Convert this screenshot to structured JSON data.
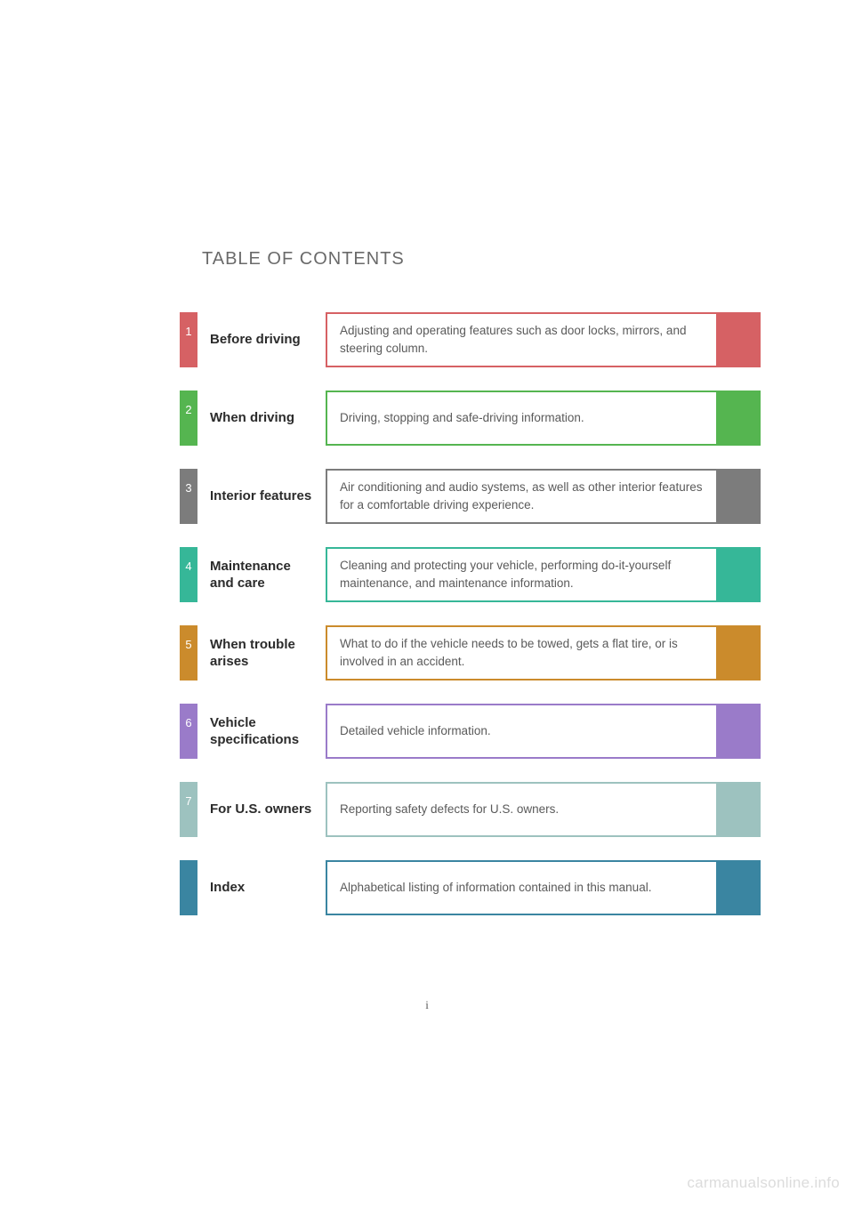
{
  "heading": "TABLE OF CONTENTS",
  "page_number": "i",
  "watermark": "carmanualsonline.info",
  "text_color": "#5a5a5a",
  "title_color": "#2b2b2b",
  "background": "#ffffff",
  "sections": [
    {
      "num": "1",
      "title": "Before driving",
      "desc": "Adjusting and operating features such as door locks, mirrors, and steering column.",
      "tab_color": "#d66164",
      "border_color": "#d66164",
      "end_color": "#d66164"
    },
    {
      "num": "2",
      "title": "When driving",
      "desc": "Driving, stopping and safe-driving information.",
      "tab_color": "#55b550",
      "border_color": "#55b550",
      "end_color": "#55b550"
    },
    {
      "num": "3",
      "title": "Interior features",
      "desc": "Air conditioning and audio systems, as well as other interior features for a comfortable driving experience.",
      "tab_color": "#7c7c7c",
      "border_color": "#7c7c7c",
      "end_color": "#7c7c7c"
    },
    {
      "num": "4",
      "title": "Maintenance and care",
      "desc": "Cleaning and protecting your vehicle, performing do-it-yourself maintenance, and maintenance information.",
      "tab_color": "#36b798",
      "border_color": "#36b798",
      "end_color": "#36b798"
    },
    {
      "num": "5",
      "title": "When trouble arises",
      "desc": "What to do if the vehicle needs to be towed, gets a flat tire, or is involved in an accident.",
      "tab_color": "#cb8b2c",
      "border_color": "#cb8b2c",
      "end_color": "#cb8b2c"
    },
    {
      "num": "6",
      "title": "Vehicle specifications",
      "desc": "Detailed vehicle information.",
      "tab_color": "#9a7bc9",
      "border_color": "#9a7bc9",
      "end_color": "#9a7bc9"
    },
    {
      "num": "7",
      "title": "For U.S. owners",
      "desc": "Reporting safety defects for U.S. owners.",
      "tab_color": "#9dc2bf",
      "border_color": "#9dc2bf",
      "end_color": "#9dc2bf"
    },
    {
      "num": "",
      "title": "Index",
      "desc": "Alphabetical listing of information contained in this manual.",
      "tab_color": "#3a85a1",
      "border_color": "#3a85a1",
      "end_color": "#3a85a1"
    }
  ]
}
